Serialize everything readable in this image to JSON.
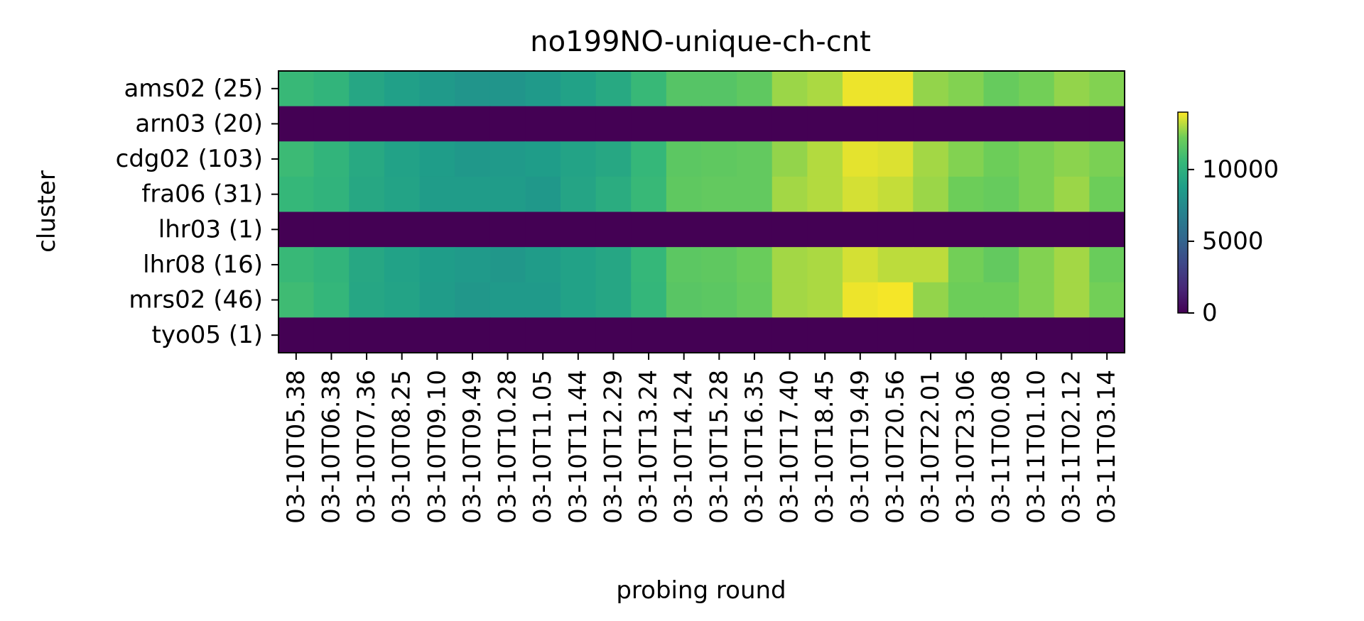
{
  "chart_data": {
    "type": "heatmap",
    "title": "no199NO-unique-ch-cnt",
    "xlabel": "probing round",
    "ylabel": "cluster",
    "colormap": "viridis",
    "zlim": [
      0,
      14000
    ],
    "colorbar_ticks": [
      0,
      5000,
      10000
    ],
    "colorbar_tick_labels": [
      "0",
      "5000",
      "10000"
    ],
    "rows": [
      "ams02 (25)",
      "arn03 (20)",
      "cdg02 (103)",
      "fra06 (31)",
      "lhr03 (1)",
      "lhr08 (16)",
      "mrs02 (46)",
      "tyo05 (1)"
    ],
    "columns": [
      "03-10T05.38",
      "03-10T06.38",
      "03-10T07.36",
      "03-10T08.25",
      "03-10T09.10",
      "03-10T09.49",
      "03-10T10.28",
      "03-10T11.05",
      "03-10T11.44",
      "03-10T12.29",
      "03-10T13.24",
      "03-10T14.24",
      "03-10T15.28",
      "03-10T16.35",
      "03-10T17.40",
      "03-10T18.45",
      "03-10T19.49",
      "03-10T20.56",
      "03-10T22.01",
      "03-10T23.06",
      "03-11T00.08",
      "03-11T01.10",
      "03-11T02.12",
      "03-11T03.14"
    ],
    "values": [
      [
        10600,
        10300,
        9300,
        8900,
        8500,
        8200,
        8200,
        8500,
        9000,
        9500,
        10600,
        11500,
        11500,
        11800,
        12800,
        13000,
        13800,
        13800,
        12700,
        12500,
        12000,
        12300,
        12700,
        12500
      ],
      [
        0,
        0,
        0,
        0,
        0,
        0,
        0,
        0,
        0,
        0,
        0,
        0,
        0,
        0,
        0,
        0,
        0,
        0,
        0,
        0,
        0,
        0,
        0,
        0
      ],
      [
        10700,
        10300,
        9500,
        9000,
        8700,
        8400,
        8500,
        8700,
        9100,
        9400,
        10500,
        11700,
        11800,
        11900,
        12700,
        13100,
        13700,
        13600,
        12900,
        12500,
        12200,
        12400,
        12600,
        12400
      ],
      [
        10500,
        10200,
        9400,
        9100,
        8600,
        8600,
        8600,
        8400,
        9200,
        9700,
        10600,
        11800,
        11900,
        11900,
        12900,
        13100,
        13500,
        13300,
        12800,
        12200,
        12000,
        12400,
        12800,
        12200
      ],
      [
        0,
        0,
        0,
        0,
        0,
        0,
        0,
        0,
        0,
        0,
        0,
        0,
        0,
        0,
        0,
        0,
        0,
        0,
        0,
        0,
        0,
        0,
        0,
        0
      ],
      [
        10600,
        10300,
        9400,
        9000,
        8700,
        8500,
        8300,
        8600,
        9000,
        9300,
        10500,
        11700,
        11800,
        12100,
        12900,
        13000,
        13500,
        13200,
        13200,
        12300,
        11900,
        12500,
        12900,
        12100
      ],
      [
        10800,
        10400,
        9300,
        9100,
        8600,
        8300,
        8500,
        8500,
        9000,
        9300,
        10400,
        11600,
        11700,
        12000,
        12900,
        13000,
        13800,
        13900,
        12700,
        12200,
        12200,
        12500,
        12900,
        12300
      ],
      [
        0,
        0,
        0,
        0,
        0,
        0,
        0,
        0,
        0,
        0,
        0,
        0,
        0,
        0,
        0,
        0,
        0,
        0,
        0,
        0,
        0,
        0,
        0,
        0
      ]
    ]
  }
}
